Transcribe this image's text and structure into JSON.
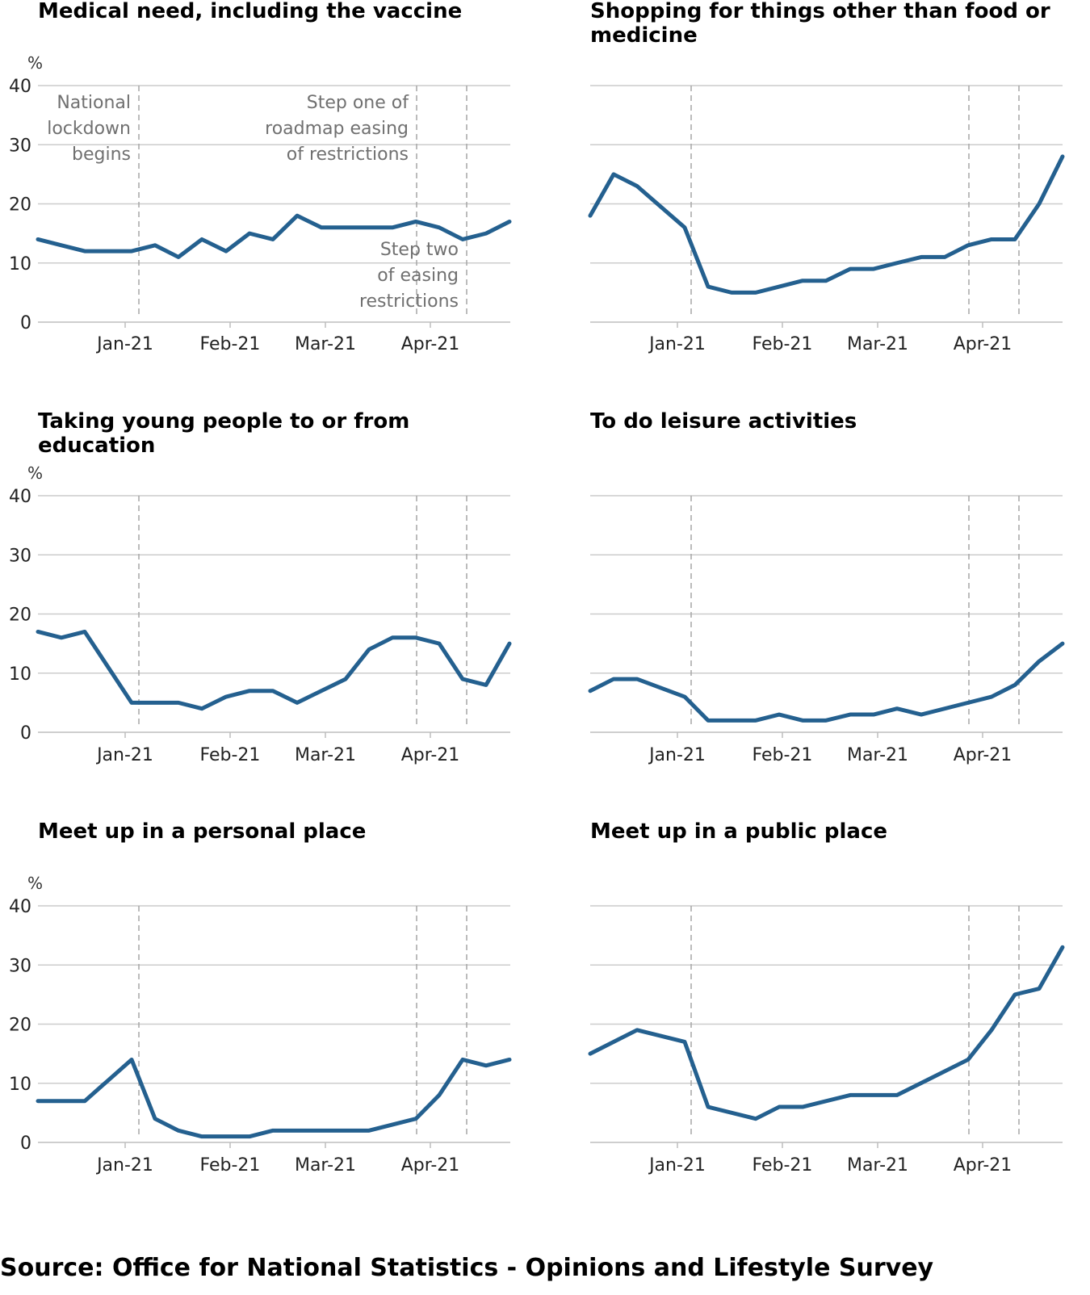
{
  "colors": {
    "line": "#24608f",
    "grid": "#cccccc",
    "event_line": "#a6a6a6",
    "annotation": "#707070"
  },
  "source_text": "Source: Office for National Statistics - Opinions and Lifestyle Survey",
  "chart_data": [
    {
      "type": "line",
      "title_lines": [
        "Medical need, including the vaccine"
      ],
      "ylabel": "%",
      "ylim": [
        0,
        40
      ],
      "yticks": [
        "0",
        "10",
        "20",
        "30",
        "40"
      ],
      "xticks": [
        "Jan-21",
        "Feb-21",
        "Mar-21",
        "Apr-21"
      ],
      "events": [
        {
          "label_lines": [
            "National",
            "lockdown",
            "begins"
          ],
          "label_side": "left",
          "label_vpos": "top"
        },
        {
          "label_lines": [
            "Step one of",
            "roadmap easing",
            "of restrictions"
          ],
          "label_side": "left",
          "label_vpos": "top"
        },
        {
          "label_lines": [
            "Step two",
            "of easing",
            "restrictions"
          ],
          "label_side": "left",
          "label_vpos": "bottom"
        }
      ],
      "series": [
        {
          "values": [
            14,
            13,
            12,
            12,
            12,
            13,
            11,
            14,
            12,
            15,
            14,
            18,
            16,
            16,
            16,
            16,
            17,
            16,
            14,
            15,
            17
          ]
        }
      ]
    },
    {
      "type": "line",
      "title_lines": [
        "Shopping for things other than food or",
        "medicine"
      ],
      "ylim": [
        0,
        40
      ],
      "xticks": [
        "Jan-21",
        "Feb-21",
        "Mar-21",
        "Apr-21"
      ],
      "events": [
        {},
        {},
        {}
      ],
      "series": [
        {
          "values": [
            18,
            25,
            23,
            16,
            6,
            5,
            5,
            6,
            7,
            7,
            9,
            9,
            10,
            11,
            11,
            13,
            14,
            14,
            20,
            28
          ]
        }
      ]
    },
    {
      "type": "line",
      "title_lines": [
        "Taking young people to or from",
        "education"
      ],
      "ylabel": "%",
      "ylim": [
        0,
        40
      ],
      "yticks": [
        "0",
        "10",
        "20",
        "30",
        "40"
      ],
      "xticks": [
        "Jan-21",
        "Feb-21",
        "Mar-21",
        "Apr-21"
      ],
      "events": [
        {},
        {},
        {}
      ],
      "series": [
        {
          "values": [
            17,
            16,
            17,
            5,
            5,
            5,
            4,
            6,
            7,
            7,
            5,
            9,
            14,
            16,
            16,
            15,
            9,
            8,
            15
          ]
        }
      ]
    },
    {
      "type": "line",
      "title_lines": [
        "To do leisure activities"
      ],
      "ylim": [
        0,
        40
      ],
      "xticks": [
        "Jan-21",
        "Feb-21",
        "Mar-21",
        "Apr-21"
      ],
      "events": [
        {},
        {},
        {}
      ],
      "series": [
        {
          "values": [
            7,
            9,
            9,
            6,
            2,
            2,
            2,
            3,
            2,
            2,
            3,
            3,
            4,
            3,
            5,
            6,
            8,
            12,
            15
          ]
        }
      ]
    },
    {
      "type": "line",
      "title_lines": [
        "Meet up in a personal place"
      ],
      "ylabel": "%",
      "ylim": [
        0,
        40
      ],
      "yticks": [
        "0",
        "10",
        "20",
        "30",
        "40"
      ],
      "xticks": [
        "Jan-21",
        "Feb-21",
        "Mar-21",
        "Apr-21"
      ],
      "events": [
        {},
        {},
        {}
      ],
      "series": [
        {
          "values": [
            7,
            7,
            7,
            14,
            4,
            2,
            1,
            1,
            1,
            2,
            2,
            2,
            2,
            2,
            4,
            8,
            14,
            13,
            14
          ]
        }
      ]
    },
    {
      "type": "line",
      "title_lines": [
        "Meet up in a public place"
      ],
      "ylim": [
        0,
        40
      ],
      "xticks": [
        "Jan-21",
        "Feb-21",
        "Mar-21",
        "Apr-21"
      ],
      "events": [
        {},
        {},
        {}
      ],
      "series": [
        {
          "values": [
            15,
            19,
            17,
            6,
            4,
            6,
            6,
            8,
            8,
            14,
            19,
            25,
            26,
            33
          ]
        }
      ]
    }
  ]
}
